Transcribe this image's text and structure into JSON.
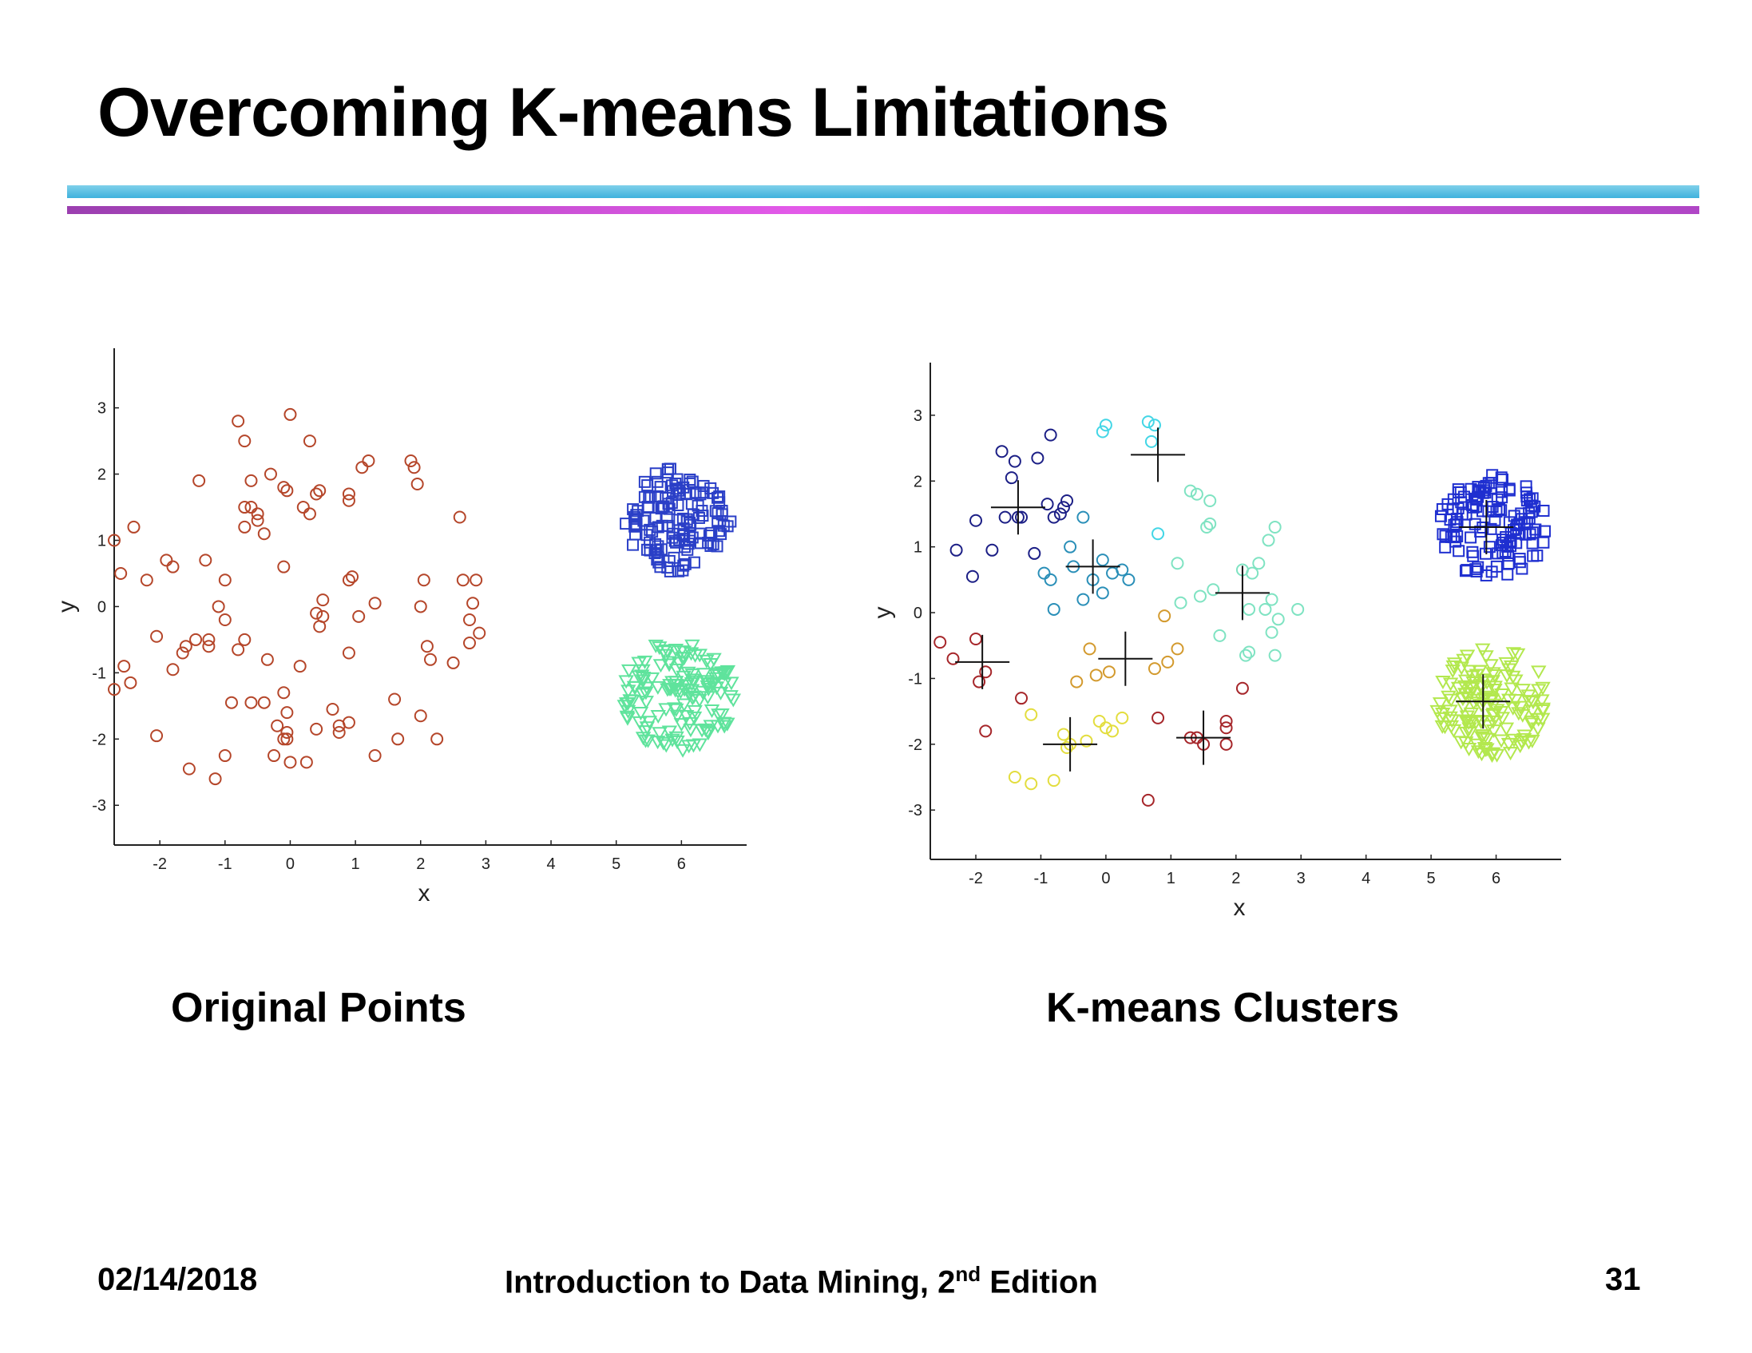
{
  "title": "Overcoming K-means Limitations",
  "captions": {
    "left": "Original Points",
    "right": "K-means Clusters"
  },
  "footer": {
    "date": "02/14/2018",
    "book_prefix": "Introduction to Data Mining, 2",
    "book_sup": "nd",
    "book_suffix": " Edition",
    "page": "31"
  },
  "chart_data": [
    {
      "type": "scatter",
      "xlabel": "x",
      "ylabel": "y",
      "xlim": [
        -2.7,
        7.0
      ],
      "ylim": [
        -3.6,
        3.9
      ],
      "xticks": [
        -2,
        -1,
        0,
        1,
        2,
        3,
        4,
        5,
        6
      ],
      "yticks": [
        -3,
        -2,
        -1,
        0,
        1,
        2,
        3
      ],
      "series": [
        {
          "marker": "circle",
          "color": "#b5462a",
          "points": [
            [
              -0.8,
              2.8
            ],
            [
              0,
              2.9
            ],
            [
              -0.7,
              2.5
            ],
            [
              0.3,
              2.5
            ],
            [
              -1.4,
              1.9
            ],
            [
              -0.6,
              1.9
            ],
            [
              -0.3,
              2.0
            ],
            [
              -0.6,
              1.5
            ],
            [
              -0.7,
              1.5
            ],
            [
              -0.5,
              1.4
            ],
            [
              -0.5,
              1.3
            ],
            [
              -0.4,
              1.1
            ],
            [
              -0.7,
              1.2
            ],
            [
              -2.4,
              1.2
            ],
            [
              -2.7,
              1.0
            ],
            [
              -2.6,
              0.5
            ],
            [
              -2.2,
              0.4
            ],
            [
              -1.9,
              0.7
            ],
            [
              -1.8,
              0.6
            ],
            [
              -1.3,
              0.7
            ],
            [
              -1.0,
              0.4
            ],
            [
              -1.1,
              0.0
            ],
            [
              -1.0,
              -0.2
            ],
            [
              -0.1,
              1.8
            ],
            [
              -0.05,
              1.75
            ],
            [
              0.2,
              1.5
            ],
            [
              0.3,
              1.4
            ],
            [
              0.4,
              1.7
            ],
            [
              0.45,
              1.75
            ],
            [
              0.9,
              1.7
            ],
            [
              0.9,
              1.6
            ],
            [
              1.1,
              2.1
            ],
            [
              1.2,
              2.2
            ],
            [
              1.85,
              2.2
            ],
            [
              1.9,
              2.1
            ],
            [
              1.95,
              1.85
            ],
            [
              2.6,
              1.35
            ],
            [
              -0.1,
              0.6
            ],
            [
              0.9,
              0.4
            ],
            [
              0.95,
              0.45
            ],
            [
              0.5,
              0.1
            ],
            [
              0.4,
              -0.1
            ],
            [
              0.45,
              -0.3
            ],
            [
              0.5,
              -0.15
            ],
            [
              1.05,
              -0.15
            ],
            [
              1.3,
              0.05
            ],
            [
              2.05,
              0.4
            ],
            [
              2.65,
              0.4
            ],
            [
              2.85,
              0.4
            ],
            [
              2.8,
              0.05
            ],
            [
              2.0,
              0.0
            ],
            [
              2.75,
              -0.2
            ],
            [
              2.9,
              -0.4
            ],
            [
              2.75,
              -0.55
            ],
            [
              -2.05,
              -0.45
            ],
            [
              -1.6,
              -0.6
            ],
            [
              -1.65,
              -0.7
            ],
            [
              -1.45,
              -0.5
            ],
            [
              -1.25,
              -0.5
            ],
            [
              -1.25,
              -0.6
            ],
            [
              -0.7,
              -0.5
            ],
            [
              -0.8,
              -0.65
            ],
            [
              -0.35,
              -0.8
            ],
            [
              0.15,
              -0.9
            ],
            [
              0.9,
              -0.7
            ],
            [
              2.1,
              -0.6
            ],
            [
              2.15,
              -0.8
            ],
            [
              2.5,
              -0.85
            ],
            [
              -2.55,
              -0.9
            ],
            [
              -2.45,
              -1.15
            ],
            [
              -2.7,
              -1.25
            ],
            [
              -1.8,
              -0.95
            ],
            [
              -0.1,
              -1.3
            ],
            [
              -0.9,
              -1.45
            ],
            [
              -0.6,
              -1.45
            ],
            [
              -0.4,
              -1.45
            ],
            [
              -0.05,
              -1.6
            ],
            [
              0.65,
              -1.55
            ],
            [
              1.6,
              -1.4
            ],
            [
              -0.2,
              -1.8
            ],
            [
              -0.05,
              -1.9
            ],
            [
              0.4,
              -1.85
            ],
            [
              0.75,
              -1.8
            ],
            [
              0.9,
              -1.75
            ],
            [
              0.75,
              -1.9
            ],
            [
              2.0,
              -1.65
            ],
            [
              -2.05,
              -1.95
            ],
            [
              -0.05,
              -2.0
            ],
            [
              -0.1,
              -2.0
            ],
            [
              -0.25,
              -2.25
            ],
            [
              -1.0,
              -2.25
            ],
            [
              0.0,
              -2.35
            ],
            [
              0.25,
              -2.35
            ],
            [
              1.65,
              -2.0
            ],
            [
              2.25,
              -2.0
            ],
            [
              -1.55,
              -2.45
            ],
            [
              -1.15,
              -2.6
            ],
            [
              1.3,
              -2.25
            ]
          ]
        },
        {
          "marker": "square",
          "color": "#2a3fc7",
          "center": [
            5.95,
            1.3
          ],
          "radius": 0.9,
          "count": 130,
          "seed": 11
        },
        {
          "marker": "triangle",
          "color": "#5fe39c",
          "center": [
            5.95,
            -1.35
          ],
          "radius": 0.95,
          "count": 140,
          "seed": 23
        }
      ]
    },
    {
      "type": "scatter",
      "xlabel": "x",
      "ylabel": "y",
      "xlim": [
        -2.7,
        7.0
      ],
      "ylim": [
        -3.75,
        3.8
      ],
      "xticks": [
        -2,
        -1,
        0,
        1,
        2,
        3,
        4,
        5,
        6
      ],
      "yticks": [
        -3,
        -2,
        -1,
        0,
        1,
        2,
        3
      ],
      "series": [
        {
          "marker": "circle",
          "color": "#1c1f86",
          "points": [
            [
              -1.6,
              2.45
            ],
            [
              -1.4,
              2.3
            ],
            [
              -1.05,
              2.35
            ],
            [
              -0.85,
              2.7
            ],
            [
              -1.45,
              2.05
            ],
            [
              -1.55,
              1.45
            ],
            [
              -1.35,
              1.45
            ],
            [
              -1.3,
              1.45
            ],
            [
              -2.0,
              1.4
            ],
            [
              -1.75,
              0.95
            ],
            [
              -2.3,
              0.95
            ],
            [
              -2.05,
              0.55
            ],
            [
              -1.1,
              0.9
            ],
            [
              -0.8,
              1.45
            ],
            [
              -0.9,
              1.65
            ],
            [
              -0.65,
              1.6
            ],
            [
              -0.6,
              1.7
            ],
            [
              -0.7,
              1.5
            ]
          ]
        },
        {
          "marker": "circle",
          "color": "#2a8fb8",
          "points": [
            [
              -0.35,
              1.45
            ],
            [
              -0.55,
              1.0
            ],
            [
              -0.05,
              0.8
            ],
            [
              -0.95,
              0.6
            ],
            [
              -0.85,
              0.5
            ],
            [
              -0.5,
              0.7
            ],
            [
              -0.2,
              0.5
            ],
            [
              0.1,
              0.6
            ],
            [
              0.25,
              0.65
            ],
            [
              0.35,
              0.5
            ],
            [
              -0.05,
              0.3
            ],
            [
              -0.35,
              0.2
            ],
            [
              -0.8,
              0.05
            ]
          ]
        },
        {
          "marker": "circle",
          "color": "#43d6e6",
          "points": [
            [
              -0.05,
              2.75
            ],
            [
              0.0,
              2.85
            ],
            [
              0.65,
              2.9
            ],
            [
              0.75,
              2.85
            ],
            [
              0.7,
              2.6
            ],
            [
              0.8,
              1.2
            ]
          ]
        },
        {
          "marker": "circle",
          "color": "#7fe3c2",
          "points": [
            [
              1.3,
              1.85
            ],
            [
              1.4,
              1.8
            ],
            [
              1.6,
              1.7
            ],
            [
              1.55,
              1.3
            ],
            [
              1.6,
              1.35
            ],
            [
              2.6,
              1.3
            ],
            [
              2.5,
              1.1
            ],
            [
              1.1,
              0.75
            ],
            [
              2.35,
              0.75
            ],
            [
              2.1,
              0.65
            ],
            [
              2.25,
              0.6
            ],
            [
              2.55,
              0.2
            ],
            [
              2.65,
              -0.1
            ],
            [
              2.95,
              0.05
            ],
            [
              2.2,
              0.05
            ],
            [
              2.45,
              0.05
            ],
            [
              1.65,
              0.35
            ],
            [
              1.45,
              0.25
            ],
            [
              1.15,
              0.15
            ],
            [
              1.75,
              -0.35
            ],
            [
              2.55,
              -0.3
            ],
            [
              2.2,
              -0.6
            ],
            [
              2.15,
              -0.65
            ],
            [
              2.6,
              -0.65
            ]
          ]
        },
        {
          "marker": "circle",
          "color": "#d39a2e",
          "points": [
            [
              -0.25,
              -0.55
            ],
            [
              -0.15,
              -0.95
            ],
            [
              -0.45,
              -1.05
            ],
            [
              0.05,
              -0.9
            ],
            [
              0.75,
              -0.85
            ],
            [
              0.95,
              -0.75
            ],
            [
              1.1,
              -0.55
            ],
            [
              0.9,
              -0.05
            ]
          ]
        },
        {
          "marker": "circle",
          "color": "#e3dd3e",
          "points": [
            [
              -1.15,
              -1.55
            ],
            [
              -0.65,
              -1.85
            ],
            [
              -0.55,
              -2.0
            ],
            [
              -0.6,
              -2.05
            ],
            [
              -0.3,
              -1.95
            ],
            [
              -0.1,
              -1.65
            ],
            [
              0.0,
              -1.75
            ],
            [
              0.1,
              -1.8
            ],
            [
              0.25,
              -1.6
            ],
            [
              -0.8,
              -2.55
            ],
            [
              -1.4,
              -2.5
            ],
            [
              -1.15,
              -2.6
            ]
          ]
        },
        {
          "marker": "circle",
          "color": "#a6262a",
          "points": [
            [
              -2.55,
              -0.45
            ],
            [
              -2.35,
              -0.7
            ],
            [
              -2.0,
              -0.4
            ],
            [
              -1.85,
              -0.9
            ],
            [
              -1.95,
              -1.05
            ],
            [
              -1.3,
              -1.3
            ],
            [
              -1.85,
              -1.8
            ],
            [
              0.8,
              -1.6
            ],
            [
              1.3,
              -1.9
            ],
            [
              1.4,
              -1.9
            ],
            [
              1.5,
              -2.0
            ],
            [
              1.85,
              -1.65
            ],
            [
              1.85,
              -1.75
            ],
            [
              1.85,
              -2.0
            ],
            [
              2.1,
              -1.15
            ],
            [
              0.65,
              -2.85
            ]
          ]
        },
        {
          "marker": "square",
          "color": "#1f2fd0",
          "center": [
            5.95,
            1.3
          ],
          "radius": 0.9,
          "count": 130,
          "seed": 41
        },
        {
          "marker": "triangle",
          "color": "#b3e84e",
          "center": [
            5.95,
            -1.35
          ],
          "radius": 0.95,
          "count": 140,
          "seed": 57
        }
      ],
      "centroids": [
        [
          -1.35,
          1.6
        ],
        [
          -0.2,
          0.7
        ],
        [
          0.8,
          2.4
        ],
        [
          2.1,
          0.3
        ],
        [
          -1.9,
          -0.75
        ],
        [
          0.3,
          -0.7
        ],
        [
          -0.55,
          -2.0
        ],
        [
          1.5,
          -1.9
        ],
        [
          5.8,
          -1.35
        ],
        [
          5.85,
          1.3
        ]
      ]
    }
  ]
}
